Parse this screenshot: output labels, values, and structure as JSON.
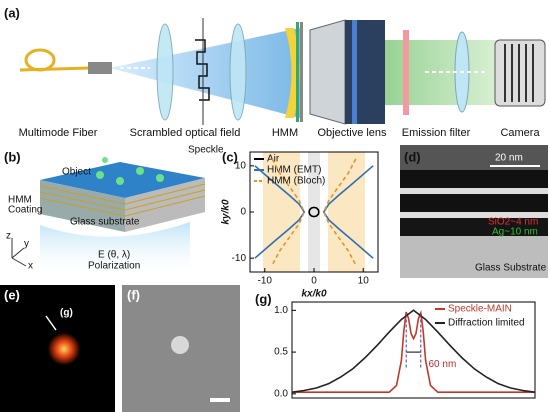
{
  "panel_labels": [
    "(a)",
    "(b)",
    "(c)",
    "(d)",
    "(e)",
    "(f)",
    "(g)"
  ],
  "a": {
    "labels": [
      "Multimode Fiber",
      "Scrambled optical field",
      "HMM",
      "Objective lens",
      "Emission filter",
      "Camera"
    ]
  },
  "b": {
    "labels": [
      "Speckle",
      "Object",
      "HMM",
      "Coating",
      "Glass substrate",
      "Polarization"
    ],
    "field": "E (θ, λ)",
    "axes": [
      "z",
      "y",
      "x"
    ]
  },
  "d": {
    "scale": "20 nm",
    "labels": [
      "SiO2~4 nm",
      "Ag~10 nm",
      "Glass Substrate"
    ]
  },
  "e": {
    "arrow_label": "(g)"
  },
  "chart_data": [
    {
      "type": "line",
      "xlabel": "kx/k0",
      "ylabel": "ky/k0",
      "xlim": [
        -13,
        13
      ],
      "ylim": [
        -13,
        13
      ],
      "xticks": [
        -10,
        0,
        10
      ],
      "yticks": [
        -10,
        0,
        10
      ],
      "legend": "upper left",
      "series": [
        {
          "name": "Air",
          "color": "#000000",
          "style": "solid",
          "x": [
            1,
            0.87,
            0.5,
            0,
            -0.5,
            -0.87,
            -1,
            -0.87,
            -0.5,
            0,
            0.5,
            0.87,
            1
          ],
          "values": [
            0,
            0.5,
            0.87,
            1,
            0.87,
            0.5,
            0,
            -0.5,
            -0.87,
            -1,
            -0.87,
            -0.5,
            0
          ]
        },
        {
          "name": "HMM (EMT)",
          "color": "#2f6fb5",
          "style": "solid",
          "x": [
            12,
            8,
            5,
            3,
            2,
            3,
            5,
            8,
            12,
            null,
            -12,
            -8,
            -5,
            -3,
            -2,
            -3,
            -5,
            -8,
            -12
          ],
          "values": [
            10,
            6.3,
            3.6,
            1.7,
            0,
            -1.7,
            -3.6,
            -6.3,
            -10,
            null,
            10,
            6.3,
            3.6,
            1.7,
            0,
            -1.7,
            -3.6,
            -6.3,
            -10
          ]
        },
        {
          "name": "HMM (Bloch)",
          "color": "#e0952a",
          "style": "dashed",
          "x": [
            8.5,
            7,
            5,
            3,
            2,
            3,
            5,
            7,
            8.5,
            null,
            -8.5,
            -7,
            -5,
            -3,
            -2,
            -3,
            -5,
            -7,
            -8.5
          ],
          "values": [
            11.5,
            8.5,
            5.5,
            2.5,
            0,
            -2.5,
            -5.5,
            -8.5,
            -11.5,
            null,
            11.5,
            8.5,
            5.5,
            2.5,
            0,
            -2.5,
            -5.5,
            -8.5,
            -11.5
          ]
        }
      ]
    },
    {
      "type": "line",
      "xlim": [
        0,
        100
      ],
      "ylim": [
        -0.05,
        1.1
      ],
      "yticks": [
        {
          "value": 0,
          "label": "0.0"
        },
        {
          "value": 0.5,
          "label": "0.5"
        },
        {
          "value": 1,
          "label": "1.0"
        }
      ],
      "legend": "upper right",
      "annotation": "60 nm",
      "series": [
        {
          "name": "Speckle-MAIN",
          "color": "#c0392b",
          "style": "solid",
          "x": [
            0,
            40,
            43,
            45,
            46,
            47,
            48,
            49,
            50,
            51,
            52,
            53,
            54,
            55,
            57,
            60,
            100
          ],
          "values": [
            0.02,
            0.02,
            0.1,
            0.4,
            0.75,
            0.98,
            0.9,
            0.72,
            0.66,
            0.72,
            0.9,
            0.97,
            0.75,
            0.4,
            0.1,
            0.02,
            0.02
          ]
        },
        {
          "name": "Diffraction limited",
          "color": "#222222",
          "style": "solid",
          "x": [
            0,
            5,
            10,
            15,
            20,
            25,
            30,
            35,
            40,
            45,
            50,
            55,
            60,
            65,
            70,
            75,
            80,
            85,
            90,
            95,
            100
          ],
          "values": [
            0.02,
            0.04,
            0.07,
            0.12,
            0.2,
            0.3,
            0.43,
            0.58,
            0.74,
            0.89,
            1.0,
            0.89,
            0.74,
            0.58,
            0.43,
            0.3,
            0.2,
            0.12,
            0.07,
            0.04,
            0.02
          ]
        }
      ]
    }
  ]
}
